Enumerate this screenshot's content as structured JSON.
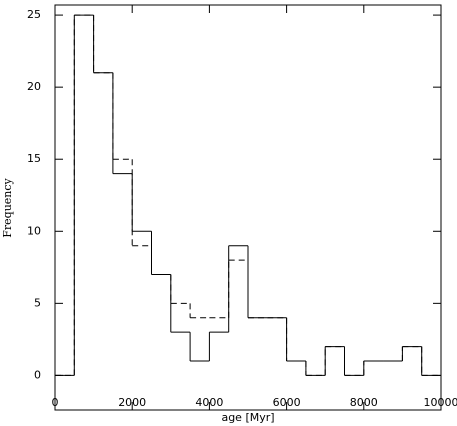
{
  "chart_data": {
    "type": "histogram",
    "xlabel": "age [Myr]",
    "ylabel": "Frequency",
    "bins": [
      0,
      500,
      1000,
      1500,
      2000,
      2500,
      3000,
      3500,
      4000,
      4500,
      5000,
      5500,
      6000,
      6500,
      7000,
      7500,
      8000,
      8500,
      9000,
      9500,
      10000
    ],
    "series": [
      {
        "color": "#000000",
        "linestyle": "solid",
        "values": [
          0,
          25,
          21,
          14,
          10,
          7,
          3,
          1,
          3,
          9,
          4,
          4,
          1,
          0,
          2,
          0,
          1,
          1,
          2,
          0
        ]
      },
      {
        "color": "#000000",
        "linestyle": "dashed",
        "values": [
          0,
          25,
          21,
          15,
          9,
          7,
          5,
          4,
          4,
          8,
          4,
          4,
          1,
          0,
          2,
          0,
          1,
          1,
          2,
          0
        ]
      }
    ],
    "xlim": [
      0,
      10000
    ],
    "xticks": [
      0,
      2000,
      4000,
      6000,
      8000,
      10000
    ],
    "ylim": [
      -2.4,
      25.7
    ],
    "yticks": [
      0,
      5,
      10,
      15,
      20,
      25
    ]
  }
}
